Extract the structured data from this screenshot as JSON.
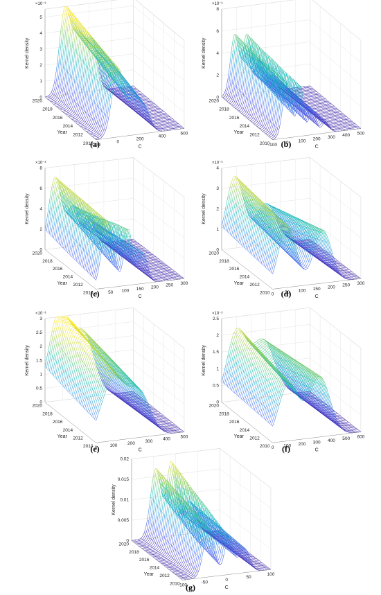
{
  "chart_data": [
    {
      "type": "surface",
      "panel_label": "(a)",
      "zlabel": "Kernel density",
      "xlabel": "Year",
      "ylabel": "C",
      "z_exponent": "×10⁻³",
      "year_ticks": [
        "2010",
        "2012",
        "2014",
        "2016",
        "2018",
        "2020"
      ],
      "year_range": [
        2010,
        2020
      ],
      "c_ticks": [
        "-200",
        "0",
        "200",
        "400",
        "600"
      ],
      "c_range": [
        -200,
        600
      ],
      "z_ticks": [
        "0",
        "1",
        "2",
        "3",
        "4",
        "5"
      ],
      "z_range": [
        0,
        5.5
      ],
      "peaks_start": [
        {
          "c": 0,
          "h": 4.2,
          "w": 55
        },
        {
          "c": 150,
          "h": 2.0,
          "w": 60
        },
        {
          "c": 250,
          "h": 1.2,
          "w": 50
        }
      ],
      "peaks_end": [
        {
          "c": -20,
          "h": 5.2,
          "w": 50
        },
        {
          "c": 110,
          "h": 3.6,
          "w": 60
        },
        {
          "c": 230,
          "h": 2.8,
          "w": 45
        }
      ]
    },
    {
      "type": "surface",
      "panel_label": "(b)",
      "zlabel": "Kernel density",
      "xlabel": "Year",
      "ylabel": "C",
      "z_exponent": "×10⁻³",
      "year_ticks": [
        "2010",
        "2012",
        "2014",
        "2016",
        "2018",
        "2020"
      ],
      "year_range": [
        2010,
        2020
      ],
      "c_ticks": [
        "-100",
        "0",
        "100",
        "200",
        "300",
        "400",
        "500"
      ],
      "c_range": [
        -100,
        500
      ],
      "z_ticks": [
        "0",
        "2",
        "4",
        "6",
        "8"
      ],
      "z_range": [
        0,
        8
      ],
      "peaks_start": [
        {
          "c": 0,
          "h": 5.0,
          "w": 30
        },
        {
          "c": 90,
          "h": 4.5,
          "w": 20
        },
        {
          "c": 170,
          "h": 2.2,
          "w": 25
        },
        {
          "c": 260,
          "h": 1.0,
          "w": 25
        }
      ],
      "peaks_end": [
        {
          "c": -10,
          "h": 5.6,
          "w": 30
        },
        {
          "c": 70,
          "h": 5.3,
          "w": 22
        },
        {
          "c": 150,
          "h": 3.0,
          "w": 25
        },
        {
          "c": 240,
          "h": 1.5,
          "w": 25
        }
      ]
    },
    {
      "type": "surface",
      "panel_label": "(c)",
      "zlabel": "Kernel density",
      "xlabel": "Year",
      "ylabel": "C",
      "z_exponent": "×10⁻³",
      "year_ticks": [
        "2010",
        "2012",
        "2014",
        "2016",
        "2018",
        "2020"
      ],
      "year_range": [
        2010,
        2020
      ],
      "c_ticks": [
        "0",
        "50",
        "100",
        "150",
        "200",
        "250",
        "300"
      ],
      "c_range": [
        0,
        300
      ],
      "z_ticks": [
        "0",
        "2",
        "4",
        "6",
        "8"
      ],
      "z_range": [
        0,
        8
      ],
      "peaks_start": [
        {
          "c": 40,
          "h": 6.5,
          "w": 20
        },
        {
          "c": 110,
          "h": 5.5,
          "w": 14
        },
        {
          "c": 160,
          "h": 3.0,
          "w": 15
        }
      ],
      "peaks_end": [
        {
          "c": 35,
          "h": 7.0,
          "w": 22
        },
        {
          "c": 95,
          "h": 3.8,
          "w": 18
        },
        {
          "c": 150,
          "h": 2.5,
          "w": 18
        }
      ]
    },
    {
      "type": "surface",
      "panel_label": "(d)",
      "zlabel": "Kernel density",
      "xlabel": "Year",
      "ylabel": "C",
      "z_exponent": "×10⁻³",
      "year_ticks": [
        "2010",
        "2012",
        "2014",
        "2016",
        "2018",
        "2020"
      ],
      "year_range": [
        2010,
        2020
      ],
      "c_ticks": [
        "0",
        "50",
        "100",
        "150",
        "200",
        "250",
        "300"
      ],
      "c_range": [
        0,
        300
      ],
      "z_ticks": [
        "0",
        "1",
        "2",
        "3",
        "4"
      ],
      "z_range": [
        0,
        4
      ],
      "peaks_start": [
        {
          "c": 50,
          "h": 3.0,
          "w": 30
        },
        {
          "c": 170,
          "h": 2.6,
          "w": 30
        }
      ],
      "peaks_end": [
        {
          "c": 45,
          "h": 3.5,
          "w": 30
        },
        {
          "c": 150,
          "h": 2.0,
          "w": 35
        }
      ]
    },
    {
      "type": "surface",
      "panel_label": "(e)",
      "zlabel": "Kernel density",
      "xlabel": "Year",
      "ylabel": "C",
      "z_exponent": "×10⁻³",
      "year_ticks": [
        "2010",
        "2012",
        "2014",
        "2016",
        "2018",
        "2020"
      ],
      "year_range": [
        2010,
        2020
      ],
      "c_ticks": [
        "0",
        "100",
        "200",
        "300",
        "400",
        "500"
      ],
      "c_range": [
        0,
        500
      ],
      "z_ticks": [
        "0",
        "0.5",
        "1",
        "1.5",
        "2",
        "2.5",
        "3"
      ],
      "z_range": [
        0,
        3
      ],
      "peaks_start": [
        {
          "c": 100,
          "h": 2.2,
          "w": 70
        },
        {
          "c": 250,
          "h": 1.5,
          "w": 60
        }
      ],
      "peaks_end": [
        {
          "c": 80,
          "h": 3.1,
          "w": 60
        },
        {
          "c": 220,
          "h": 2.2,
          "w": 60
        }
      ]
    },
    {
      "type": "surface",
      "panel_label": "(f)",
      "zlabel": "Kernel density",
      "xlabel": "Year",
      "ylabel": "C",
      "z_exponent": "×10⁻³",
      "year_ticks": [
        "2010",
        "2012",
        "2014",
        "2016",
        "2018",
        "2020"
      ],
      "year_range": [
        2010,
        2020
      ],
      "c_ticks": [
        "0",
        "100",
        "200",
        "300",
        "400",
        "500",
        "600"
      ],
      "c_range": [
        0,
        600
      ],
      "z_ticks": [
        "0",
        "0.5",
        "1",
        "1.5",
        "2",
        "2.5"
      ],
      "z_range": [
        0,
        2.5
      ],
      "peaks_start": [
        {
          "c": 110,
          "h": 1.7,
          "w": 70
        },
        {
          "c": 320,
          "h": 1.8,
          "w": 70
        }
      ],
      "peaks_end": [
        {
          "c": 100,
          "h": 2.0,
          "w": 65
        },
        {
          "c": 280,
          "h": 1.7,
          "w": 80
        }
      ]
    },
    {
      "type": "surface",
      "panel_label": "(g)",
      "zlabel": "Kernel density",
      "xlabel": "Year",
      "ylabel": "C",
      "z_exponent": "",
      "year_ticks": [
        "2010",
        "2012",
        "2014",
        "2016",
        "2018",
        "2020"
      ],
      "year_range": [
        2010,
        2020
      ],
      "c_ticks": [
        "-100",
        "-50",
        "0",
        "50",
        "100"
      ],
      "c_range": [
        -100,
        100
      ],
      "z_ticks": [
        "0",
        "0.005",
        "0.01",
        "0.015",
        "0.02"
      ],
      "z_range": [
        0,
        0.02
      ],
      "peaks_start": [
        {
          "c": -40,
          "h": 0.012,
          "w": 12
        },
        {
          "c": 5,
          "h": 0.009,
          "w": 10
        },
        {
          "c": 40,
          "h": 0.006,
          "w": 12
        }
      ],
      "peaks_end": [
        {
          "c": -45,
          "h": 0.017,
          "w": 12
        },
        {
          "c": -10,
          "h": 0.018,
          "w": 10
        },
        {
          "c": 30,
          "h": 0.008,
          "w": 14
        }
      ]
    }
  ]
}
